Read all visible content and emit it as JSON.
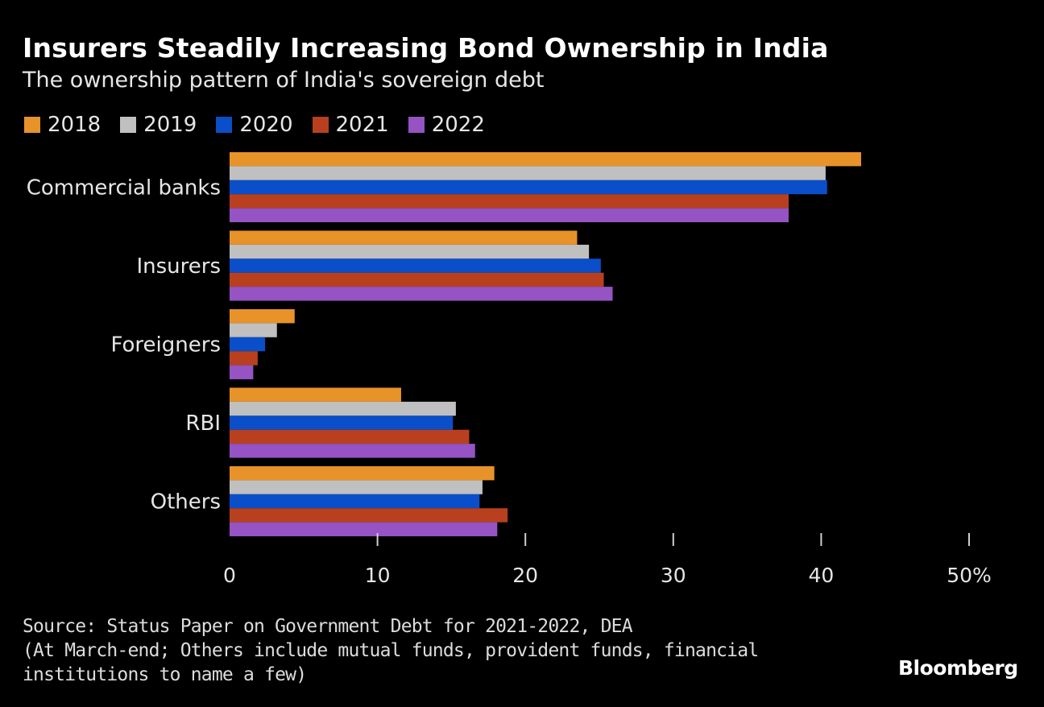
{
  "header": {
    "title": "Insurers Steadily Increasing Bond Ownership in India",
    "subtitle": "The ownership pattern of India's sovereign debt"
  },
  "chart_data": {
    "type": "bar",
    "orientation": "horizontal",
    "title": "Insurers Steadily Increasing Bond Ownership in India",
    "subtitle": "The ownership pattern of India's sovereign debt",
    "categories": [
      "Commercial banks",
      "Insurers",
      "Foreigners",
      "RBI",
      "Others"
    ],
    "series": [
      {
        "name": "2018",
        "color": "#e8922a",
        "values": [
          42.7,
          23.5,
          4.4,
          11.6,
          17.9
        ]
      },
      {
        "name": "2019",
        "color": "#c0c0c0",
        "values": [
          40.3,
          24.3,
          3.2,
          15.3,
          17.1
        ]
      },
      {
        "name": "2020",
        "color": "#0a4fc9",
        "values": [
          40.4,
          25.1,
          2.4,
          15.1,
          16.9
        ]
      },
      {
        "name": "2021",
        "color": "#b8401f",
        "values": [
          37.8,
          25.3,
          1.9,
          16.2,
          18.8
        ]
      },
      {
        "name": "2022",
        "color": "#9553c4",
        "values": [
          37.8,
          25.9,
          1.6,
          16.6,
          18.1
        ]
      }
    ],
    "x_ticks": [
      "0",
      "10",
      "20",
      "30",
      "40",
      "50%"
    ],
    "x_tick_values": [
      0,
      10,
      20,
      30,
      40,
      50
    ],
    "xlim": [
      0,
      50
    ],
    "xlabel": "",
    "ylabel": "",
    "legend_position": "top-left",
    "grid": false
  },
  "footer": {
    "source_lines": [
      "Source: Status Paper on Government Debt for 2021-2022, DEA",
      "(At March-end; Others include mutual funds, provident funds, financial",
      "institutions to name a few)"
    ],
    "brand": "Bloomberg"
  }
}
